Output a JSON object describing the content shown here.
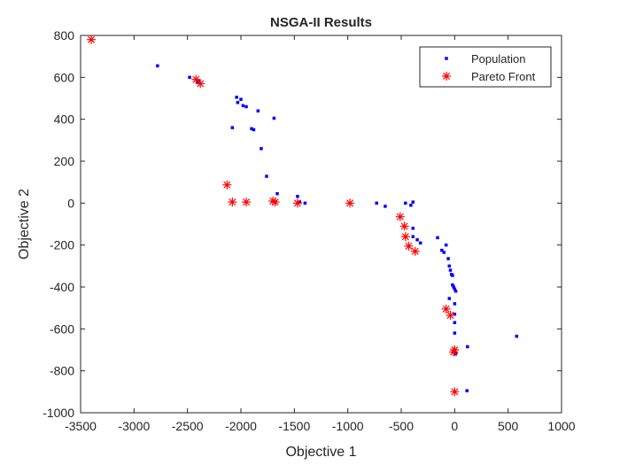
{
  "chart_data": {
    "type": "scatter",
    "title": "NSGA-II Results",
    "xlabel": "Objective 1",
    "ylabel": "Objective 2",
    "xlim": [
      -3500,
      1000
    ],
    "ylim": [
      -1000,
      800
    ],
    "xticks": [
      -3500,
      -3000,
      -2500,
      -2000,
      -1500,
      -1000,
      -500,
      0,
      500,
      1000
    ],
    "yticks": [
      -1000,
      -800,
      -600,
      -400,
      -200,
      0,
      200,
      400,
      600,
      800
    ],
    "grid": false,
    "legend_position": "top-right",
    "series": [
      {
        "name": "Population",
        "marker": "point",
        "color": "#0000ff",
        "points": [
          [
            -2780,
            655
          ],
          [
            -2480,
            600
          ],
          [
            -2400,
            580
          ],
          [
            -2080,
            360
          ],
          [
            -2040,
            505
          ],
          [
            -2030,
            480
          ],
          [
            -2000,
            495
          ],
          [
            -1980,
            465
          ],
          [
            -1950,
            460
          ],
          [
            -1900,
            355
          ],
          [
            -1880,
            350
          ],
          [
            -1840,
            440
          ],
          [
            -1810,
            260
          ],
          [
            -1760,
            128
          ],
          [
            -1690,
            405
          ],
          [
            -1660,
            45
          ],
          [
            -1470,
            32
          ],
          [
            -1450,
            5
          ],
          [
            -1400,
            0
          ],
          [
            -730,
            0
          ],
          [
            -650,
            -15
          ],
          [
            -460,
            0
          ],
          [
            -410,
            -10
          ],
          [
            -390,
            5
          ],
          [
            -390,
            -120
          ],
          [
            -390,
            -160
          ],
          [
            -350,
            -175
          ],
          [
            -320,
            -190
          ],
          [
            -160,
            -165
          ],
          [
            -120,
            -225
          ],
          [
            -100,
            -235
          ],
          [
            -80,
            -200
          ],
          [
            -60,
            -265
          ],
          [
            -50,
            -300
          ],
          [
            -40,
            -320
          ],
          [
            -30,
            -340
          ],
          [
            -20,
            -345
          ],
          [
            -20,
            -390
          ],
          [
            -10,
            -400
          ],
          [
            0,
            -410
          ],
          [
            10,
            -420
          ],
          [
            -50,
            -455
          ],
          [
            0,
            -480
          ],
          [
            0,
            -530
          ],
          [
            0,
            -570
          ],
          [
            0,
            -620
          ],
          [
            10,
            -720
          ],
          [
            120,
            -685
          ],
          [
            580,
            -635
          ],
          [
            115,
            -895
          ]
        ]
      },
      {
        "name": "Pareto Front",
        "marker": "asterisk",
        "color": "#ff0000",
        "points": [
          [
            -3400,
            780
          ],
          [
            -2420,
            590
          ],
          [
            -2380,
            570
          ],
          [
            -2130,
            87
          ],
          [
            -2080,
            5
          ],
          [
            -1950,
            5
          ],
          [
            -1700,
            10
          ],
          [
            -1680,
            5
          ],
          [
            -1470,
            0
          ],
          [
            -980,
            0
          ],
          [
            -510,
            -65
          ],
          [
            -470,
            -110
          ],
          [
            -460,
            -160
          ],
          [
            -430,
            -205
          ],
          [
            -370,
            -230
          ],
          [
            -80,
            -505
          ],
          [
            -40,
            -535
          ],
          [
            0,
            -700
          ],
          [
            -10,
            -710
          ],
          [
            0,
            -900
          ]
        ]
      }
    ]
  }
}
